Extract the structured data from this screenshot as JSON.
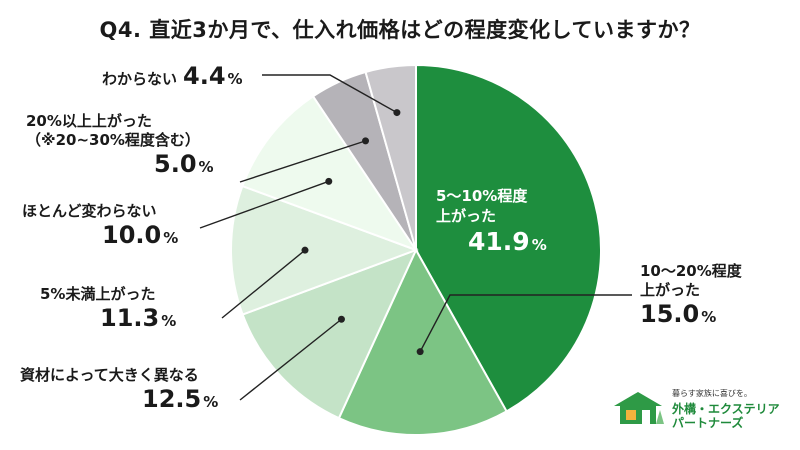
{
  "title": "Q4. 直近3か月で、仕入れ価格はどの程度変化していますか？",
  "chart_data": {
    "type": "pie",
    "slices": [
      {
        "label_lines": [
          "5～10%程度",
          "上がった"
        ],
        "value": 41.9,
        "color": "#1e8e3e"
      },
      {
        "label_lines": [
          "10～20%程度",
          "上がった"
        ],
        "value": 15.0,
        "color": "#7cc484"
      },
      {
        "label_lines": [
          "資材によって大きく異なる"
        ],
        "value": 12.5,
        "color": "#c4e3c7"
      },
      {
        "label_lines": [
          "5%未満上がった"
        ],
        "value": 11.3,
        "color": "#def0df"
      },
      {
        "label_lines": [
          "ほとんど変わらない"
        ],
        "value": 10.0,
        "color": "#eefaee"
      },
      {
        "label_lines": [
          "20%以上上がった",
          "（※20~30%程度含む）"
        ],
        "value": 5.0,
        "color": "#b5b3b8"
      },
      {
        "label_lines": [
          "わからない"
        ],
        "value": 4.4,
        "color": "#c9c7cb"
      }
    ],
    "unit": "%"
  },
  "labels": {
    "s0_t1": "5～10%程度",
    "s0_t2": "上がった",
    "s0_v": "41.9",
    "s1_t1": "10～20%程度",
    "s1_t2": "上がった",
    "s1_v": "15.0",
    "s2_t1": "資材によって大きく異なる",
    "s2_v": "12.5",
    "s3_t1": "5%未満上がった",
    "s3_v": "11.3",
    "s4_t1": "ほとんど変わらない",
    "s4_v": "10.0",
    "s5_t1": "20%以上上がった",
    "s5_t2": "（※20~30%程度含む）",
    "s5_v": "5.0",
    "s6_t1": "わからない",
    "s6_v": "4.4",
    "unit": "%"
  },
  "logo": {
    "tagline": "暮らす家族に喜びを。",
    "name_line1": "外構・エクステリア",
    "name_line2": "パートナーズ",
    "color": "#1f8a3b"
  }
}
